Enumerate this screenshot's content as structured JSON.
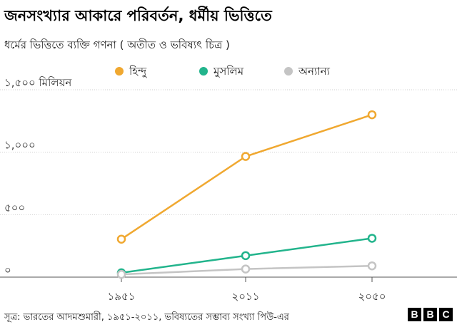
{
  "chart_data": {
    "type": "line",
    "title": "জনসংখ্যার আকারে পরিবর্তন, ধর্মীয় ভিত্তিতে",
    "subtitle": "ধর্মের ভিত্তিতে ব্যক্তি গণনা ( অতীত ও ভবিষ্যৎ চিত্র )",
    "ylabel": "১,৫০০ মিলিয়ন",
    "ylim": [
      0,
      1500
    ],
    "yticks": [
      {
        "value": 0,
        "label": "০"
      },
      {
        "value": 500,
        "label": "৫০০"
      },
      {
        "value": 1000,
        "label": "১,০০০"
      },
      {
        "value": 1500,
        "label": "১,৫০০ মিলিয়ন"
      }
    ],
    "categories": [
      "১৯৫১",
      "২০১১",
      "২০৫০"
    ],
    "series": [
      {
        "name": "হিন্দু",
        "color": "#f0a830",
        "values": [
          304,
          966,
          1300
        ]
      },
      {
        "name": "মুসলিম",
        "color": "#22b48c",
        "values": [
          35,
          172,
          311
        ]
      },
      {
        "name": "অন্যান্য",
        "color": "#c4c4c4",
        "values": [
          22,
          65,
          90
        ]
      }
    ],
    "legend": "top-center"
  },
  "footer": {
    "source": "সূত্র: ভারতের আদমশুমারী, ১৯৫১-২০১১, ভবিষ্যতের সম্ভাব্য সংখ্যা পিউ-এর",
    "logo_letters": [
      "B",
      "B",
      "C"
    ]
  }
}
